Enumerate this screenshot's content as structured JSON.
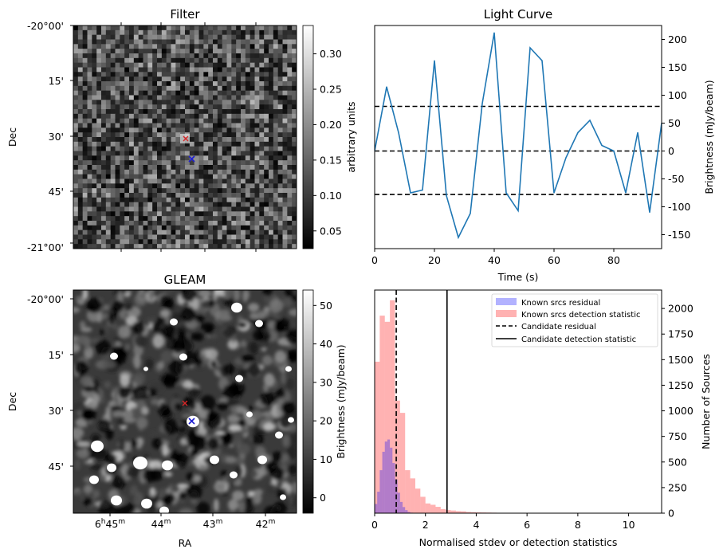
{
  "panels": {
    "filter": {
      "title": "Filter",
      "ylabel": "Dec",
      "yticks": [
        "-20°00'",
        "15'",
        "30'",
        "45'",
        "-21°00'"
      ],
      "colorbar": {
        "label": "arbitrary units",
        "range": [
          0.025,
          0.34
        ],
        "ticks": [
          "0.05",
          "0.10",
          "0.15",
          "0.20",
          "0.25",
          "0.30"
        ],
        "tick_values": [
          0.05,
          0.1,
          0.15,
          0.2,
          0.25,
          0.3
        ]
      }
    },
    "gleam": {
      "title": "GLEAM",
      "xlabel": "RA",
      "ylabel": "Dec",
      "yticks": [
        "-20°00'",
        "15'",
        "30'",
        "45'"
      ],
      "xticks": [
        {
          "main": "6",
          "sup1": "h",
          "mid": "45",
          "sup2": "m"
        },
        {
          "main": "44",
          "sup2": "m"
        },
        {
          "main": "43",
          "sup2": "m"
        },
        {
          "main": "42",
          "sup2": "m"
        }
      ],
      "colorbar": {
        "label": "Brightness (mJy/beam)",
        "range": [
          -4,
          54
        ],
        "ticks": [
          "0",
          "10",
          "20",
          "30",
          "40",
          "50"
        ],
        "tick_values": [
          0,
          10,
          20,
          30,
          40,
          50
        ]
      }
    }
  },
  "markers": {
    "red": "#d62728",
    "blue": "#1f1fd0"
  },
  "chart_data": [
    {
      "type": "line",
      "title": "Light Curve",
      "xlabel": "Time (s)",
      "ylabel": "Brightness (mJy/beam)",
      "xlim": [
        0,
        96
      ],
      "ylim": [
        -175,
        225
      ],
      "xticks": [
        0,
        20,
        40,
        60,
        80
      ],
      "yticks": [
        -150,
        -100,
        -50,
        0,
        50,
        100,
        150,
        200
      ],
      "series": [
        {
          "color": "#1f77b4",
          "x": [
            0,
            4,
            8,
            12,
            16,
            20,
            24,
            28,
            32,
            36,
            40,
            44,
            48,
            52,
            56,
            60,
            64,
            68,
            72,
            76,
            80,
            84,
            88,
            92,
            96
          ],
          "y": [
            0,
            115,
            33,
            -75,
            -70,
            162,
            -80,
            -155,
            -112,
            85,
            212,
            -75,
            -107,
            185,
            162,
            -75,
            -12,
            33,
            55,
            10,
            0,
            -75,
            33,
            -110,
            50
          ]
        }
      ],
      "hlines": [
        {
          "y": 80,
          "style": "dashed",
          "color": "#000000"
        },
        {
          "y": 0,
          "style": "dashed",
          "color": "#000000"
        },
        {
          "y": -78,
          "style": "dashed",
          "color": "#000000"
        }
      ]
    },
    {
      "type": "histogram",
      "xlabel": "Normalised stdev or detection statistics",
      "ylabel": "Number of Sources",
      "xlim": [
        0,
        11.3
      ],
      "ylim": [
        0,
        2180
      ],
      "xticks": [
        0,
        2,
        4,
        6,
        8,
        10
      ],
      "yticks": [
        0,
        250,
        500,
        750,
        1000,
        1250,
        1500,
        1750,
        2000
      ],
      "bin_width": 0.2,
      "legend_position": "top-right",
      "series": [
        {
          "name": "Known srcs residual",
          "color": "#0000ff",
          "opacity": 0.3,
          "bin_start": 0,
          "bin_width": 0.1,
          "counts": [
            90,
            210,
            420,
            600,
            700,
            720,
            640,
            490,
            330,
            200,
            110,
            60,
            30,
            12,
            5
          ]
        },
        {
          "name": "Known srcs detection statistic",
          "color": "#ff0000",
          "opacity": 0.3,
          "bin_start": 0,
          "bin_width": 0.2,
          "counts": [
            1480,
            1930,
            1870,
            2080,
            1100,
            980,
            420,
            340,
            240,
            160,
            95,
            82,
            62,
            40,
            30,
            26,
            20,
            18,
            12,
            10,
            8,
            7,
            6,
            5,
            4,
            4,
            3,
            3,
            2,
            2,
            2,
            2,
            1,
            1,
            4,
            1
          ]
        }
      ],
      "vlines": [
        {
          "name": "Candidate residual",
          "x": 0.85,
          "style": "dashed",
          "color": "#000000"
        },
        {
          "name": "Candidate detection statistic",
          "x": 2.85,
          "style": "solid",
          "color": "#000000"
        }
      ]
    }
  ]
}
